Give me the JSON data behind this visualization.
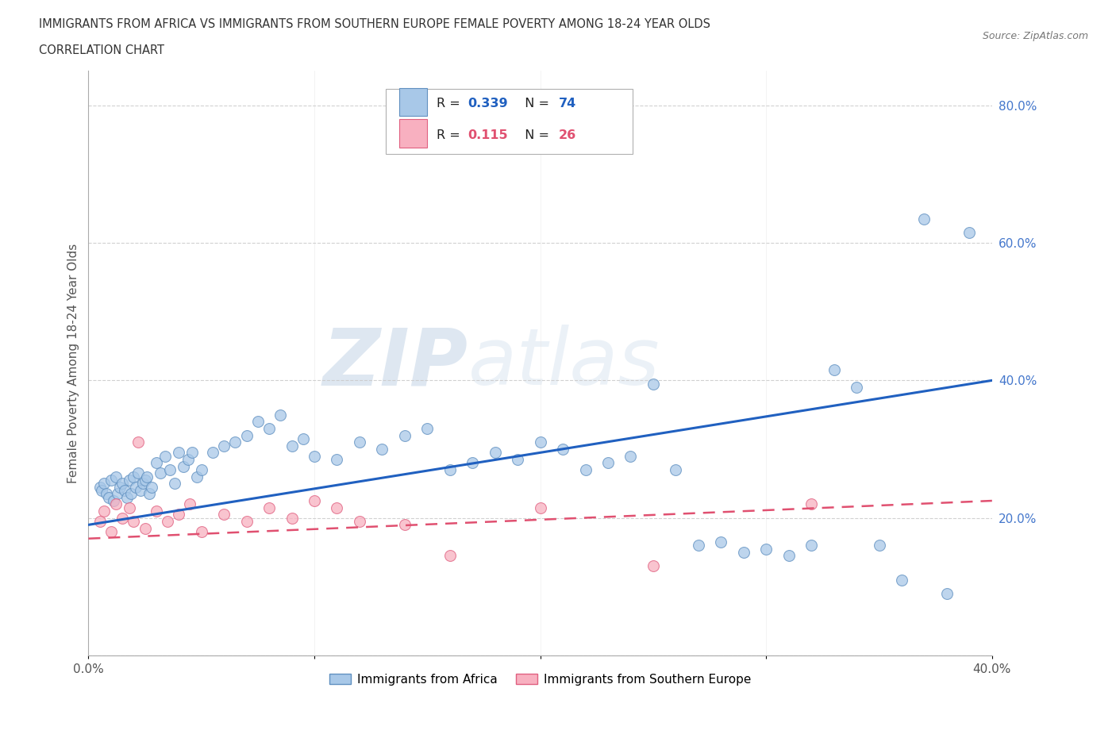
{
  "title_line1": "IMMIGRANTS FROM AFRICA VS IMMIGRANTS FROM SOUTHERN EUROPE FEMALE POVERTY AMONG 18-24 YEAR OLDS",
  "title_line2": "CORRELATION CHART",
  "source_text": "Source: ZipAtlas.com",
  "ylabel": "Female Poverty Among 18-24 Year Olds",
  "xlim": [
    0.0,
    0.4
  ],
  "ylim": [
    0.0,
    0.85
  ],
  "africa_color": "#a8c8e8",
  "africa_edge": "#6090c0",
  "southern_europe_color": "#f8b0c0",
  "southern_europe_edge": "#e06080",
  "trend_africa_color": "#2060c0",
  "trend_europe_color": "#e05070",
  "R_africa": "0.339",
  "N_africa": "74",
  "R_europe": "0.115",
  "N_europe": "26",
  "legend_label_africa": "Immigrants from Africa",
  "legend_label_europe": "Immigrants from Southern Europe",
  "watermark_zip": "ZIP",
  "watermark_atlas": "atlas",
  "ytick_color": "#4477cc",
  "xtick_color": "#555555",
  "africa_x": [
    0.005,
    0.006,
    0.007,
    0.008,
    0.009,
    0.01,
    0.011,
    0.012,
    0.013,
    0.014,
    0.015,
    0.016,
    0.017,
    0.018,
    0.019,
    0.02,
    0.021,
    0.022,
    0.023,
    0.024,
    0.025,
    0.026,
    0.027,
    0.028,
    0.03,
    0.032,
    0.034,
    0.036,
    0.038,
    0.04,
    0.042,
    0.044,
    0.046,
    0.048,
    0.05,
    0.055,
    0.06,
    0.065,
    0.07,
    0.075,
    0.08,
    0.085,
    0.09,
    0.095,
    0.1,
    0.11,
    0.12,
    0.13,
    0.14,
    0.15,
    0.16,
    0.17,
    0.18,
    0.19,
    0.2,
    0.21,
    0.22,
    0.23,
    0.24,
    0.25,
    0.26,
    0.27,
    0.28,
    0.29,
    0.3,
    0.31,
    0.32,
    0.33,
    0.34,
    0.35,
    0.36,
    0.37,
    0.38,
    0.39
  ],
  "africa_y": [
    0.245,
    0.24,
    0.25,
    0.235,
    0.23,
    0.255,
    0.225,
    0.26,
    0.235,
    0.245,
    0.25,
    0.24,
    0.23,
    0.255,
    0.235,
    0.26,
    0.245,
    0.265,
    0.24,
    0.25,
    0.255,
    0.26,
    0.235,
    0.245,
    0.28,
    0.265,
    0.29,
    0.27,
    0.25,
    0.295,
    0.275,
    0.285,
    0.295,
    0.26,
    0.27,
    0.295,
    0.305,
    0.31,
    0.32,
    0.34,
    0.33,
    0.35,
    0.305,
    0.315,
    0.29,
    0.285,
    0.31,
    0.3,
    0.32,
    0.33,
    0.27,
    0.28,
    0.295,
    0.285,
    0.31,
    0.3,
    0.27,
    0.28,
    0.29,
    0.395,
    0.27,
    0.16,
    0.165,
    0.15,
    0.155,
    0.145,
    0.16,
    0.415,
    0.39,
    0.16,
    0.11,
    0.635,
    0.09,
    0.615
  ],
  "europe_x": [
    0.005,
    0.007,
    0.01,
    0.012,
    0.015,
    0.018,
    0.02,
    0.022,
    0.025,
    0.03,
    0.035,
    0.04,
    0.045,
    0.05,
    0.06,
    0.07,
    0.08,
    0.09,
    0.1,
    0.11,
    0.12,
    0.14,
    0.16,
    0.2,
    0.25,
    0.32
  ],
  "europe_y": [
    0.195,
    0.21,
    0.18,
    0.22,
    0.2,
    0.215,
    0.195,
    0.31,
    0.185,
    0.21,
    0.195,
    0.205,
    0.22,
    0.18,
    0.205,
    0.195,
    0.215,
    0.2,
    0.225,
    0.215,
    0.195,
    0.19,
    0.145,
    0.215,
    0.13,
    0.22
  ]
}
